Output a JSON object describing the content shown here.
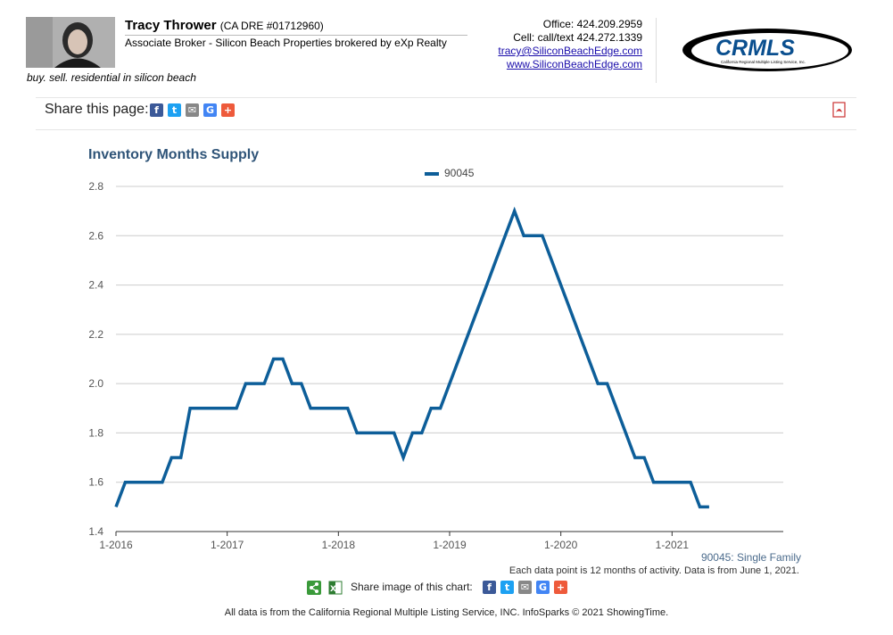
{
  "header": {
    "agent_name": "Tracy Thrower",
    "agent_dre": "(CA DRE #01712960)",
    "agent_title": "Associate Broker - Silicon Beach Properties brokered by eXp Realty",
    "tagline": "buy. sell. residential in silicon beach",
    "office": "Office: 424.209.2959",
    "cell": "Cell: call/text 424.272.1339",
    "email": "tracy@SiliconBeachEdge.com",
    "website": "www.SiliconBeachEdge.com",
    "logo_text": "CRMLS",
    "logo_subtext": "California Regional Multiple Listing Service, Inc."
  },
  "share": {
    "label": "Share this page:",
    "image_label": "Share image of this chart:",
    "icons": [
      "facebook-icon",
      "twitter-icon",
      "email-icon",
      "google-icon",
      "plus-icon"
    ]
  },
  "colors": {
    "line": "#0d5e99",
    "title": "#2f5478",
    "facebook": "#3b5998",
    "twitter": "#1da1f2",
    "email": "#888888",
    "google": "#4285f4",
    "plus": "#ee5a3b"
  },
  "chart_data": {
    "type": "line",
    "title": "Inventory Months Supply",
    "subtitle": "90045: Single Family",
    "footnote": "Each data point is 12 months of activity. Data is from June 1, 2021.",
    "legend_position": "top",
    "grid": true,
    "ylim": [
      1.4,
      2.8
    ],
    "yticks": [
      "1.4",
      "1.6",
      "1.8",
      "2.0",
      "2.2",
      "2.4",
      "2.6",
      "2.8"
    ],
    "xticks": [
      "1-2016",
      "1-2017",
      "1-2018",
      "1-2019",
      "1-2020",
      "1-2021"
    ],
    "series": [
      {
        "name": "90045",
        "x": [
          "2016-01",
          "2016-02",
          "2016-03",
          "2016-04",
          "2016-05",
          "2016-06",
          "2016-07",
          "2016-08",
          "2016-09",
          "2016-10",
          "2016-11",
          "2016-12",
          "2017-01",
          "2017-02",
          "2017-03",
          "2017-04",
          "2017-05",
          "2017-06",
          "2017-07",
          "2017-08",
          "2017-09",
          "2017-10",
          "2017-11",
          "2017-12",
          "2018-01",
          "2018-02",
          "2018-03",
          "2018-04",
          "2018-05",
          "2018-06",
          "2018-07",
          "2018-08",
          "2018-09",
          "2018-10",
          "2018-11",
          "2018-12",
          "2019-01",
          "2019-02",
          "2019-03",
          "2019-04",
          "2019-05",
          "2019-06",
          "2019-07",
          "2019-08",
          "2019-09",
          "2019-10",
          "2019-11",
          "2019-12",
          "2020-01",
          "2020-02",
          "2020-03",
          "2020-04",
          "2020-05",
          "2020-06",
          "2020-07",
          "2020-08",
          "2020-09",
          "2020-10",
          "2020-11",
          "2020-12",
          "2021-01",
          "2021-02",
          "2021-03",
          "2021-04",
          "2021-05"
        ],
        "values": [
          1.5,
          1.6,
          1.6,
          1.6,
          1.6,
          1.6,
          1.7,
          1.7,
          1.9,
          1.9,
          1.9,
          1.9,
          1.9,
          1.9,
          2.0,
          2.0,
          2.0,
          2.1,
          2.1,
          2.0,
          2.0,
          1.9,
          1.9,
          1.9,
          1.9,
          1.9,
          1.8,
          1.8,
          1.8,
          1.8,
          1.8,
          1.7,
          1.8,
          1.8,
          1.9,
          1.9,
          2.0,
          2.1,
          2.2,
          2.3,
          2.4,
          2.5,
          2.6,
          2.7,
          2.6,
          2.6,
          2.6,
          2.5,
          2.4,
          2.3,
          2.2,
          2.1,
          2.0,
          2.0,
          1.9,
          1.8,
          1.7,
          1.7,
          1.6,
          1.6,
          1.6,
          1.6,
          1.6,
          1.5,
          1.5
        ]
      }
    ]
  },
  "footer": {
    "copyright": "All data is from the California Regional Multiple Listing Service, INC. InfoSparks © 2021 ShowingTime."
  }
}
